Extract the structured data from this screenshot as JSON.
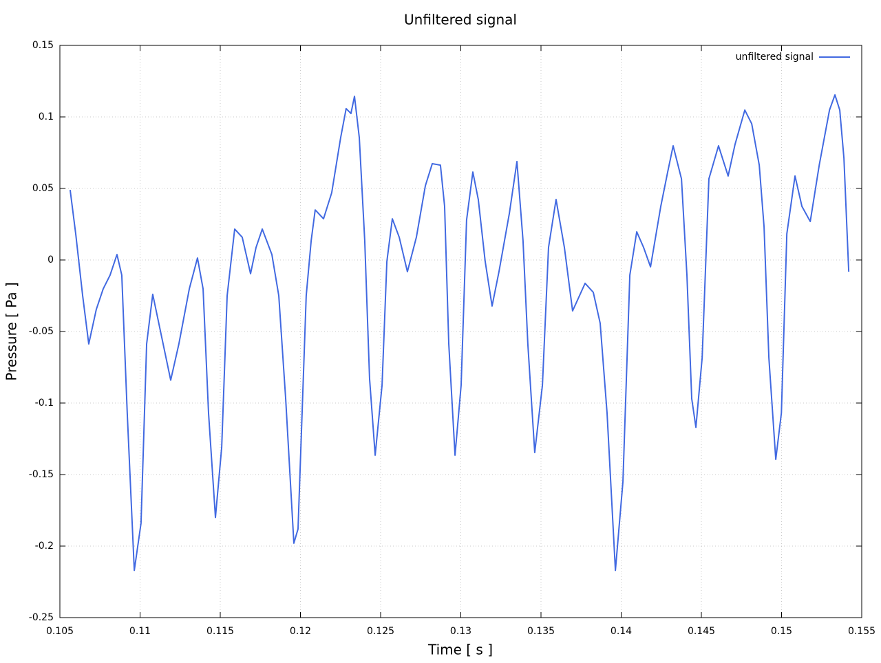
{
  "chart_data": {
    "type": "line",
    "title": "Unfiltered signal",
    "x_label": "Time [ s ]",
    "y_label": "Pressure [ Pa ]",
    "xlim": [
      0.105,
      0.155
    ],
    "xticks": [
      0.105,
      0.11,
      0.115,
      0.12,
      0.125,
      0.13,
      0.135,
      0.14,
      0.145,
      0.15,
      0.155
    ],
    "ylim": [
      -0.25,
      0.15
    ],
    "yticks": [
      -0.25,
      -0.2,
      -0.15,
      -0.1,
      -0.05,
      0,
      0.05,
      0.1,
      0.15
    ],
    "grid": true,
    "legend": "upper right",
    "x": [
      0.10564,
      0.10577,
      0.10599,
      0.10642,
      0.1068,
      0.10727,
      0.1077,
      0.10813,
      0.10856,
      0.10886,
      0.1092,
      0.10964,
      0.11006,
      0.11041,
      0.11079,
      0.11135,
      0.11191,
      0.11242,
      0.11307,
      0.11358,
      0.11393,
      0.11427,
      0.1147,
      0.11509,
      0.11543,
      0.1159,
      0.11637,
      0.11689,
      0.11723,
      0.11762,
      0.11822,
      0.11865,
      0.11908,
      0.11959,
      0.11985,
      0.12036,
      0.12067,
      0.12092,
      0.12144,
      0.12195,
      0.12251,
      0.12285,
      0.12315,
      0.12337,
      0.12367,
      0.12401,
      0.12431,
      0.12466,
      0.12509,
      0.12539,
      0.12573,
      0.12616,
      0.12667,
      0.12723,
      0.12779,
      0.12822,
      0.12873,
      0.12899,
      0.12925,
      0.12964,
      0.13002,
      0.13036,
      0.13075,
      0.13109,
      0.13152,
      0.13195,
      0.13238,
      0.13303,
      0.1335,
      0.13388,
      0.13418,
      0.13461,
      0.13509,
      0.13547,
      0.13594,
      0.13646,
      0.13697,
      0.1374,
      0.13775,
      0.13826,
      0.13869,
      0.13912,
      0.13964,
      0.14011,
      0.14054,
      0.14097,
      0.1414,
      0.14183,
      0.14247,
      0.1429,
      0.14324,
      0.14376,
      0.1441,
      0.1444,
      0.14466,
      0.14505,
      0.14547,
      0.14607,
      0.14667,
      0.1471,
      0.14771,
      0.14814,
      0.14861,
      0.14891,
      0.14921,
      0.14964,
      0.14999,
      0.15033,
      0.15084,
      0.15127,
      0.15179,
      0.15235,
      0.15299,
      0.15333,
      0.15363,
      0.15389,
      0.15419
    ],
    "series": [
      {
        "name": "unfiltered signal",
        "color": "#4169e1",
        "values": [
          0.049,
          0.0375,
          0.018,
          -0.025,
          -0.0587,
          -0.0346,
          -0.0202,
          -0.0106,
          0.0038,
          -0.0106,
          -0.107,
          -0.217,
          -0.184,
          -0.0587,
          -0.024,
          -0.054,
          -0.084,
          -0.0587,
          -0.0202,
          0.0014,
          -0.0202,
          -0.107,
          -0.18,
          -0.131,
          -0.025,
          0.0216,
          0.0159,
          -0.0096,
          0.0087,
          0.0216,
          0.0038,
          -0.025,
          -0.097,
          -0.198,
          -0.188,
          -0.025,
          0.0135,
          0.035,
          0.0288,
          0.047,
          0.0856,
          0.1058,
          0.1024,
          0.1144,
          0.0856,
          0.0135,
          -0.0827,
          -0.1365,
          -0.0875,
          -0.001,
          0.0288,
          0.0159,
          -0.0082,
          0.0159,
          0.0519,
          0.0673,
          0.0663,
          0.0375,
          -0.0587,
          -0.1365,
          -0.0875,
          0.0279,
          0.0615,
          0.0423,
          -0.001,
          -0.0322,
          -0.0082,
          0.0327,
          0.0688,
          0.0135,
          -0.0587,
          -0.1346,
          -0.0875,
          0.0087,
          0.0423,
          0.0087,
          -0.0356,
          -0.025,
          -0.0163,
          -0.0226,
          -0.0442,
          -0.107,
          -0.217,
          -0.155,
          -0.0106,
          0.0197,
          0.0087,
          -0.0048,
          0.0375,
          0.0615,
          0.0798,
          0.0567,
          -0.0106,
          -0.097,
          -0.117,
          -0.0683,
          0.0567,
          0.0798,
          0.0587,
          0.0808,
          0.1048,
          0.0952,
          0.0663,
          0.0231,
          -0.0683,
          -0.1394,
          -0.107,
          0.0183,
          0.0587,
          0.0375,
          0.0269,
          0.0663,
          0.1048,
          0.1154,
          0.1048,
          0.0712,
          -0.0082
        ]
      }
    ]
  }
}
